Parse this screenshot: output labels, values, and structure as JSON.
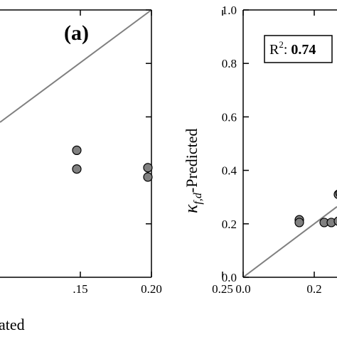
{
  "chart_data": [
    {
      "panel_label": "(a)",
      "type": "scatter",
      "xlabel": "ated",
      "ylabel": "",
      "xlim": [
        0.1,
        0.25
      ],
      "ylim": [
        0.0,
        1.0
      ],
      "x_ticks": [
        0.15,
        0.2,
        0.25
      ],
      "x_tick_labels": [
        ".15",
        "0.20",
        "0.25"
      ],
      "y_ticks": [
        0.2,
        0.4,
        0.6,
        0.8,
        1.0
      ],
      "identity_line": true,
      "points": [
        {
          "x": 0.15,
          "y": 0.475
        },
        {
          "x": 0.15,
          "y": 0.405
        },
        {
          "x": 0.2,
          "y": 0.41
        },
        {
          "x": 0.2,
          "y": 0.375
        }
      ],
      "marker_color": "#808080"
    },
    {
      "type": "scatter",
      "ylabel_main": "κ",
      "ylabel_sub": "f,d",
      "ylabel_rest": "-Predicted",
      "xlim": [
        0.0,
        0.3
      ],
      "ylim": [
        0.0,
        1.0
      ],
      "x_ticks": [
        0.0,
        0.2
      ],
      "x_tick_labels": [
        "0.0",
        "0.2"
      ],
      "y_ticks": [
        0.0,
        0.2,
        0.4,
        0.6,
        0.8,
        1.0
      ],
      "y_tick_labels": [
        "0.0",
        "0.2",
        "0.4",
        "0.6",
        "0.8",
        "1.0"
      ],
      "r2_label": "R",
      "r2_sup": "2",
      "r2_value": "0.74",
      "identity_line": true,
      "points": [
        {
          "x": 0.15,
          "y": 0.215
        },
        {
          "x": 0.15,
          "y": 0.205
        },
        {
          "x": 0.22,
          "y": 0.205
        },
        {
          "x": 0.24,
          "y": 0.205
        },
        {
          "x": 0.26,
          "y": 0.21
        },
        {
          "x": 0.26,
          "y": 0.31
        },
        {
          "x": 0.265,
          "y": 0.315
        }
      ],
      "marker_color": "#808080"
    }
  ]
}
